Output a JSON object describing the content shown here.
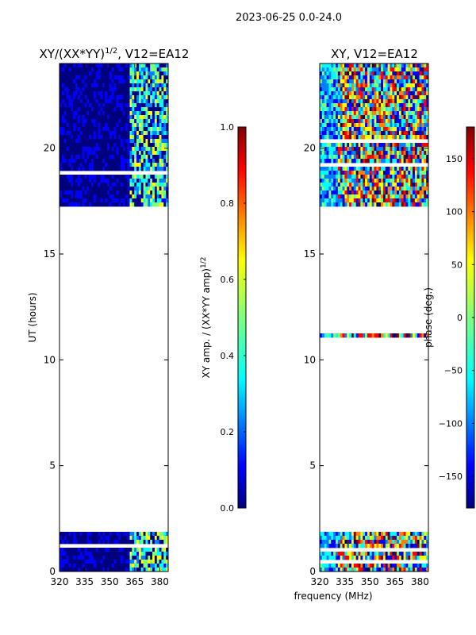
{
  "figure_title": "2023-06-25 0.0-24.0",
  "xlabel": "frequency (MHz)",
  "chart_data": [
    {
      "type": "heatmap",
      "name": "amplitude-panel",
      "title_main": "XY/(XX*YY)",
      "title_sup": "1/2",
      "title_rest": ", V12=EA12",
      "ylabel": "UT (hours)",
      "xlim": [
        320,
        385
      ],
      "ylim": [
        0,
        24
      ],
      "xticks": [
        320,
        335,
        350,
        365,
        380
      ],
      "yticks": [
        0,
        5,
        10,
        15,
        20
      ],
      "data_time_ranges": [
        [
          0,
          1.95
        ],
        [
          11.1,
          11.2
        ],
        [
          17.3,
          23.95
        ]
      ],
      "colorbar": {
        "label_main": "XY amp. / (XX*YY amp)",
        "label_sup": "1/2",
        "range": [
          0.0,
          1.0
        ],
        "ticks": [
          0.0,
          0.2,
          0.4,
          0.6,
          0.8,
          1.0
        ],
        "tick_labels": [
          "0.0",
          "0.2",
          "0.4",
          "0.6",
          "0.8",
          "1.0"
        ],
        "colormap": "jet"
      }
    },
    {
      "type": "heatmap",
      "name": "phase-panel",
      "title_main": "XY, V12=EA12",
      "xlim": [
        320,
        385
      ],
      "ylim": [
        0,
        24
      ],
      "xticks": [
        320,
        335,
        350,
        365,
        380
      ],
      "yticks": [
        0,
        5,
        10,
        15,
        20
      ],
      "data_time_ranges": [
        [
          0,
          1.95
        ],
        [
          11.1,
          11.2
        ],
        [
          17.3,
          23.95
        ]
      ],
      "colorbar": {
        "label": "phase (deg.)",
        "range": [
          -180,
          180
        ],
        "ticks": [
          -150,
          -100,
          -50,
          0,
          50,
          100,
          150
        ],
        "tick_labels": [
          "−150",
          "−100",
          "−50",
          "0",
          "50",
          "100",
          "150"
        ],
        "colormap": "jet"
      }
    }
  ],
  "colors": {
    "jet": [
      "#00007f",
      "#0000ff",
      "#007fff",
      "#00ffff",
      "#7fff7f",
      "#ffff00",
      "#ff7f00",
      "#ff0000",
      "#7f0000"
    ],
    "axis": "#000000",
    "background": "#ffffff"
  }
}
